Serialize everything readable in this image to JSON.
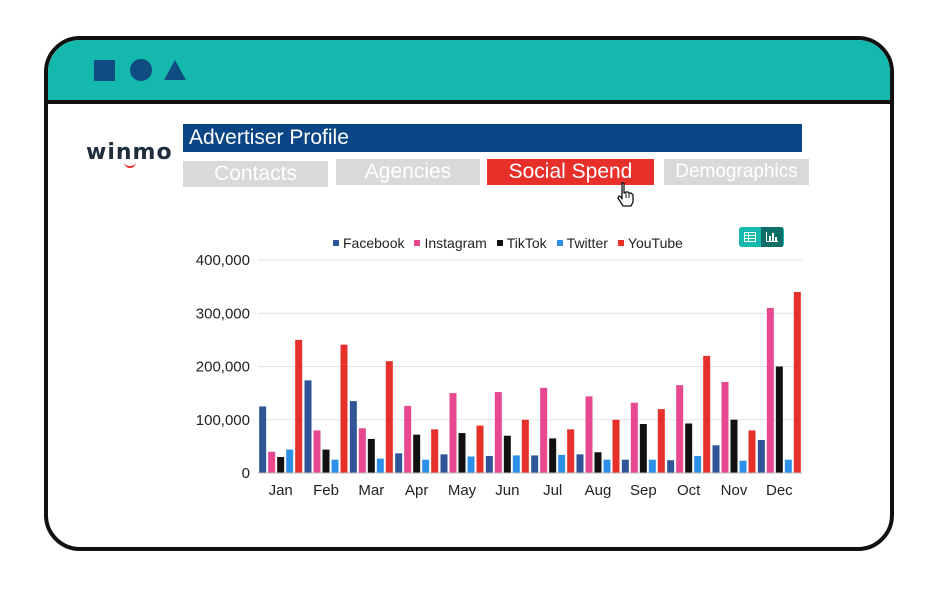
{
  "brand": {
    "logo_text": "winmo"
  },
  "profile": {
    "title": "Advertiser Profile"
  },
  "tabs": [
    {
      "label": "Contacts",
      "active": false
    },
    {
      "label": "Agencies",
      "active": false
    },
    {
      "label": "Social Spend",
      "active": true
    },
    {
      "label": "Demographics",
      "active": false
    }
  ],
  "colors": {
    "titlebar": "#14b8ac",
    "profile_bar": "#0a4585",
    "active_tab": "#e8302b",
    "inactive_tab": "#d9d9d9"
  },
  "icons": {
    "window_shapes": [
      "square-icon",
      "circle-icon",
      "triangle-icon"
    ],
    "toggle": [
      "table-view-icon",
      "chart-view-icon"
    ],
    "cursor": "hand-pointer-icon"
  },
  "chart_data": {
    "type": "bar",
    "categories": [
      "Jan",
      "Feb",
      "Mar",
      "Apr",
      "May",
      "Jun",
      "Jul",
      "Aug",
      "Sep",
      "Oct",
      "Nov",
      "Dec"
    ],
    "series": [
      {
        "name": "Facebook",
        "color": "#2f5597",
        "values": [
          125000,
          174000,
          135000,
          37000,
          35000,
          32000,
          33000,
          35000,
          25000,
          24000,
          52000,
          62000
        ]
      },
      {
        "name": "Instagram",
        "color": "#e8488f",
        "values": [
          40000,
          80000,
          84000,
          126000,
          150000,
          152000,
          160000,
          144000,
          132000,
          165000,
          171000,
          310000
        ]
      },
      {
        "name": "TikTok",
        "color": "#111111",
        "values": [
          30000,
          44000,
          64000,
          72000,
          75000,
          70000,
          65000,
          39000,
          92000,
          93000,
          100000,
          200000
        ]
      },
      {
        "name": "Twitter",
        "color": "#2e8fe6",
        "values": [
          44000,
          25000,
          27000,
          25000,
          31000,
          33000,
          34000,
          25000,
          25000,
          32000,
          23000,
          25000
        ]
      },
      {
        "name": "YouTube",
        "color": "#e8302b",
        "values": [
          250000,
          241000,
          210000,
          82000,
          89000,
          100000,
          82000,
          100000,
          120000,
          220000,
          80000,
          340000
        ]
      }
    ],
    "yticks": [
      "0",
      "100,000",
      "200,000",
      "300,000",
      "400,000"
    ],
    "ylim": [
      0,
      400000
    ],
    "title": "",
    "xlabel": "",
    "ylabel": "",
    "grid": true,
    "legend_position": "top"
  }
}
